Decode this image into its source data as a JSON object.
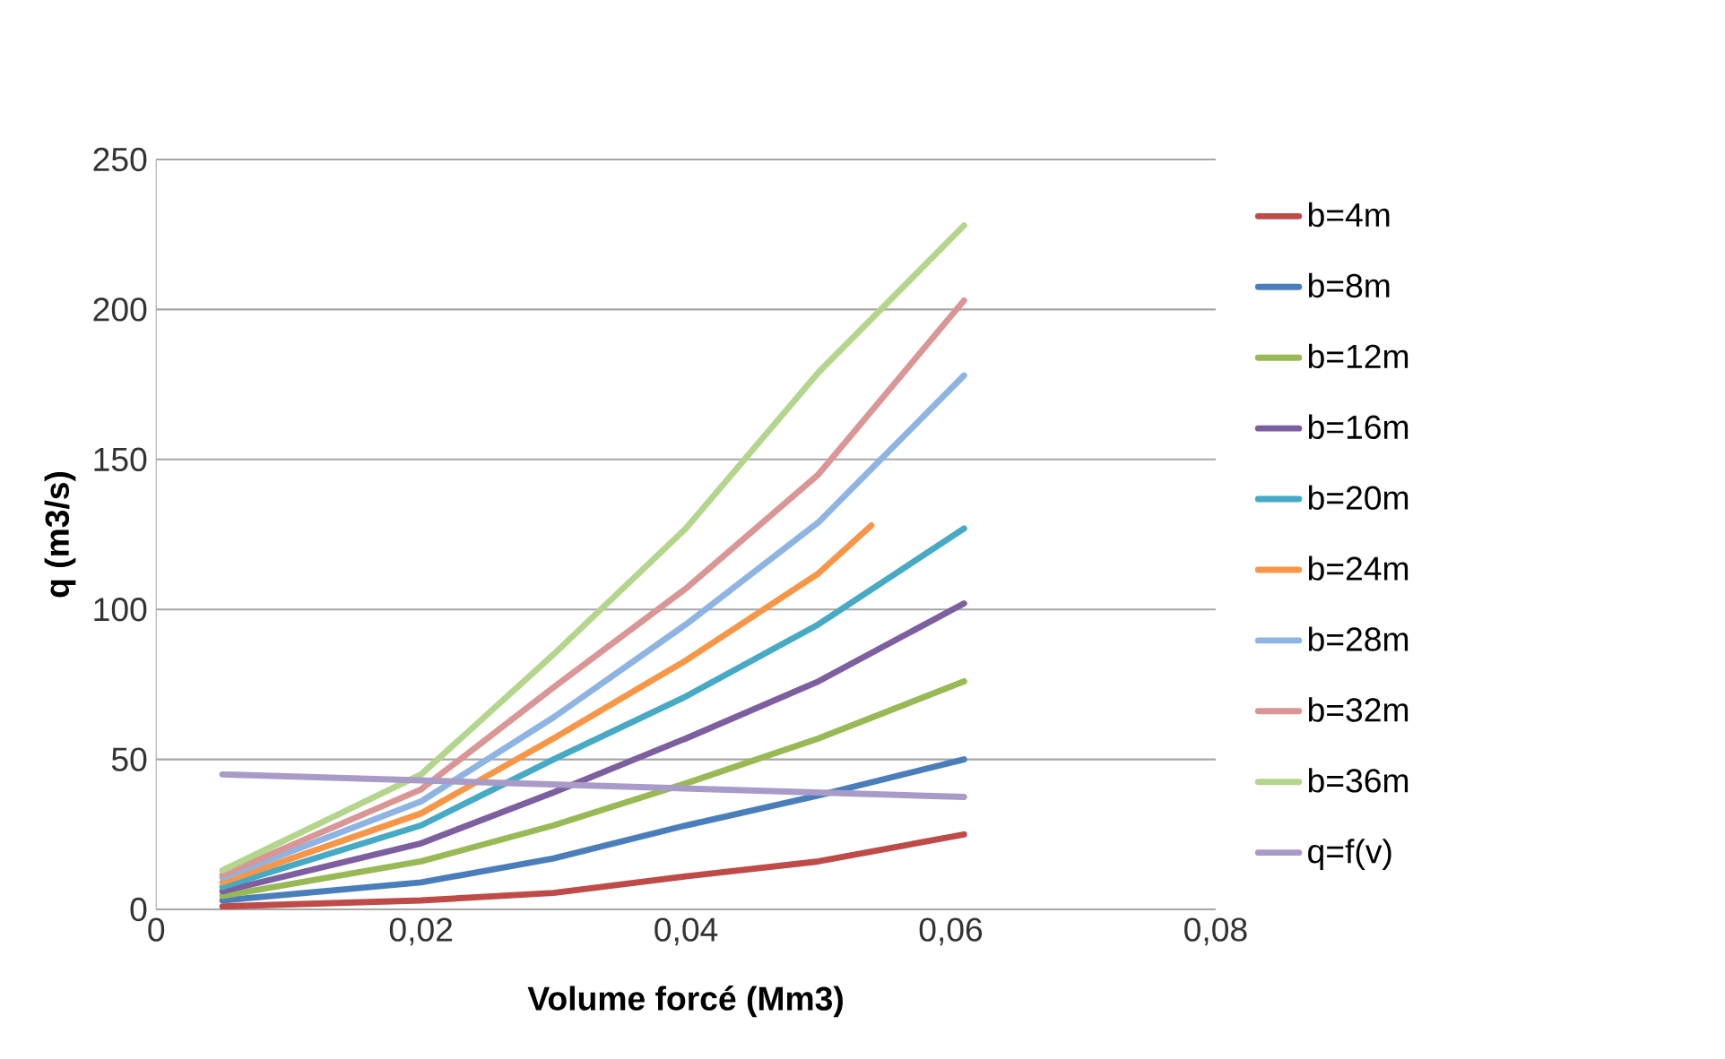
{
  "chart_data": {
    "type": "line",
    "xlabel": "Volume forcé (Mm3)",
    "ylabel": "q (m3/s)",
    "xlim": [
      0,
      0.08
    ],
    "xticks": [
      0,
      {
        "value": 0.02,
        "label": "0,02"
      },
      {
        "value": 0.04,
        "label": "0,04"
      },
      {
        "value": 0.06,
        "label": "0,06"
      },
      {
        "value": 0.08,
        "label": "0,08"
      }
    ],
    "ylim": [
      0,
      250
    ],
    "yticks": [
      0,
      50,
      100,
      150,
      200,
      250
    ],
    "grid": "y",
    "legend": "right",
    "marker": "none",
    "line_style": "solid",
    "series": [
      {
        "name": "b=4m",
        "color": "#be4b48",
        "x": [
          0.005,
          0.02,
          0.03,
          0.04,
          0.05,
          0.061
        ],
        "values": [
          1,
          3,
          5.5,
          11,
          16,
          25
        ]
      },
      {
        "name": "b=8m",
        "color": "#4a7ebb",
        "x": [
          0.005,
          0.02,
          0.03,
          0.04,
          0.05,
          0.061
        ],
        "values": [
          3,
          9,
          17,
          28,
          38,
          50
        ]
      },
      {
        "name": "b=12m",
        "color": "#98b954",
        "x": [
          0.005,
          0.02,
          0.03,
          0.04,
          0.05,
          0.061
        ],
        "values": [
          4.5,
          16,
          28,
          42,
          57,
          76
        ]
      },
      {
        "name": "b=16m",
        "color": "#7d5fa0",
        "x": [
          0.005,
          0.02,
          0.03,
          0.04,
          0.05,
          0.061
        ],
        "values": [
          6,
          22,
          39,
          57,
          76,
          102
        ]
      },
      {
        "name": "b=20m",
        "color": "#46aac5",
        "x": [
          0.005,
          0.02,
          0.03,
          0.04,
          0.05,
          0.061
        ],
        "values": [
          7.5,
          28,
          50,
          71,
          95,
          127
        ]
      },
      {
        "name": "b=24m",
        "color": "#f79646",
        "x": [
          0.005,
          0.02,
          0.03,
          0.04,
          0.05,
          0.054
        ],
        "values": [
          9,
          32,
          57,
          83,
          112,
          128
        ]
      },
      {
        "name": "b=28m",
        "color": "#8eb4e3",
        "x": [
          0.005,
          0.02,
          0.03,
          0.04,
          0.05,
          0.061
        ],
        "values": [
          10.5,
          36,
          64,
          95,
          129,
          178
        ]
      },
      {
        "name": "b=32m",
        "color": "#d99694",
        "x": [
          0.005,
          0.02,
          0.03,
          0.04,
          0.05,
          0.061
        ],
        "values": [
          11.5,
          40,
          74,
          107,
          145,
          203
        ]
      },
      {
        "name": "b=36m",
        "color": "#b3d58c",
        "x": [
          0.005,
          0.02,
          0.03,
          0.04,
          0.05,
          0.061
        ],
        "values": [
          13,
          45,
          85,
          127,
          179,
          228
        ]
      },
      {
        "name": "q=f(v)",
        "color": "#a99bc8",
        "x": [
          0.005,
          0.061
        ],
        "values": [
          45,
          37.5
        ]
      }
    ]
  }
}
